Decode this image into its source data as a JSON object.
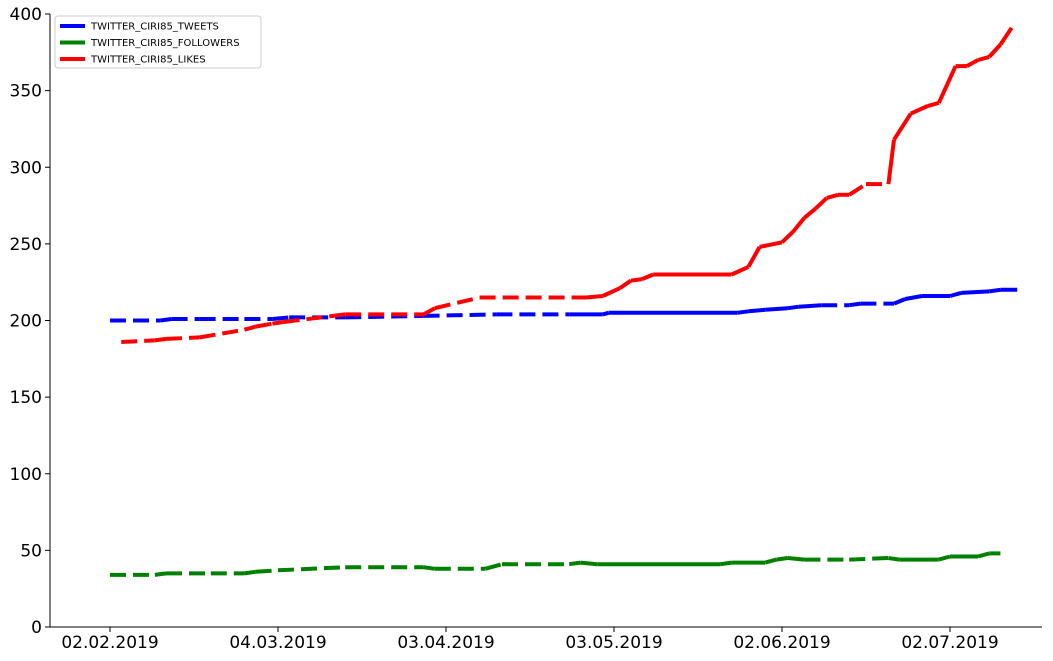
{
  "chart_data": {
    "type": "line",
    "title": "",
    "xlabel": "",
    "ylabel": "",
    "x_tick_labels": [
      "02.02.2019",
      "04.03.2019",
      "03.04.2019",
      "03.05.2019",
      "02.06.2019",
      "02.07.2019"
    ],
    "x_tick_dates": [
      "2019-02-02",
      "2019-03-04",
      "2019-04-03",
      "2019-05-03",
      "2019-06-02",
      "2019-07-02"
    ],
    "xlim": [
      "2019-02-02",
      "2019-07-27"
    ],
    "ylim": [
      0,
      400
    ],
    "y_ticks": [
      0,
      50,
      100,
      150,
      200,
      250,
      300,
      350,
      400
    ],
    "grid": false,
    "legend_position": "upper-left",
    "series": [
      {
        "name": "TWITTER_CIRI85_TWEETS",
        "color": "#0000ff",
        "points": [
          [
            "2019-02-02",
            200,
            "dashed"
          ],
          [
            "2019-02-11",
            200,
            "dashed"
          ],
          [
            "2019-02-13",
            201,
            "dashed"
          ],
          [
            "2019-02-18",
            201,
            "dashed"
          ],
          [
            "2019-02-26",
            201,
            "dashed"
          ],
          [
            "2019-03-03",
            201,
            "dashed"
          ],
          [
            "2019-03-06",
            202,
            "dashed"
          ],
          [
            "2019-03-16",
            202,
            "dashed"
          ],
          [
            "2019-03-30",
            203,
            "dashed"
          ],
          [
            "2019-04-12",
            204,
            "dashed"
          ],
          [
            "2019-04-25",
            204,
            "dashed"
          ],
          [
            "2019-05-01",
            204,
            "solid"
          ],
          [
            "2019-05-02",
            205,
            "solid"
          ],
          [
            "2019-05-25",
            205,
            "solid"
          ],
          [
            "2019-05-27",
            206,
            "solid"
          ],
          [
            "2019-05-30",
            207,
            "solid"
          ],
          [
            "2019-06-03",
            208,
            "solid"
          ],
          [
            "2019-06-05",
            209,
            "solid"
          ],
          [
            "2019-06-09",
            210,
            "solid"
          ],
          [
            "2019-06-14",
            210,
            "dashed"
          ],
          [
            "2019-06-16",
            211,
            "dashed"
          ],
          [
            "2019-06-22",
            211,
            "dashed"
          ],
          [
            "2019-06-24",
            214,
            "solid"
          ],
          [
            "2019-06-27",
            216,
            "solid"
          ],
          [
            "2019-07-02",
            216,
            "solid"
          ],
          [
            "2019-07-04",
            218,
            "solid"
          ],
          [
            "2019-07-09",
            219,
            "solid"
          ],
          [
            "2019-07-11",
            220,
            "solid"
          ],
          [
            "2019-07-14",
            220,
            "solid"
          ]
        ]
      },
      {
        "name": "TWITTER_CIRI85_FOLLOWERS",
        "color": "#008000",
        "points": [
          [
            "2019-02-02",
            34,
            "dashed"
          ],
          [
            "2019-02-10",
            34,
            "dashed"
          ],
          [
            "2019-02-12",
            35,
            "dashed"
          ],
          [
            "2019-02-20",
            35,
            "dashed"
          ],
          [
            "2019-02-26",
            35,
            "dashed"
          ],
          [
            "2019-02-28",
            36,
            "dashed"
          ],
          [
            "2019-03-04",
            37,
            "dashed"
          ],
          [
            "2019-03-16",
            39,
            "dashed"
          ],
          [
            "2019-03-30",
            39,
            "dashed"
          ],
          [
            "2019-04-01",
            38,
            "dashed"
          ],
          [
            "2019-04-10",
            38,
            "dashed"
          ],
          [
            "2019-04-13",
            41,
            "dashed"
          ],
          [
            "2019-04-25",
            41,
            "dashed"
          ],
          [
            "2019-04-27",
            42,
            "solid"
          ],
          [
            "2019-04-30",
            41,
            "solid"
          ],
          [
            "2019-05-22",
            41,
            "solid"
          ],
          [
            "2019-05-24",
            42,
            "solid"
          ],
          [
            "2019-05-30",
            42,
            "solid"
          ],
          [
            "2019-06-01",
            44,
            "solid"
          ],
          [
            "2019-06-03",
            45,
            "solid"
          ],
          [
            "2019-06-06",
            44,
            "solid"
          ],
          [
            "2019-06-14",
            44,
            "dashed"
          ],
          [
            "2019-06-21",
            45,
            "dashed"
          ],
          [
            "2019-06-23",
            44,
            "solid"
          ],
          [
            "2019-06-30",
            44,
            "solid"
          ],
          [
            "2019-07-02",
            46,
            "solid"
          ],
          [
            "2019-07-07",
            46,
            "solid"
          ],
          [
            "2019-07-09",
            48,
            "solid"
          ],
          [
            "2019-07-11",
            48,
            "solid"
          ]
        ]
      },
      {
        "name": "TWITTER_CIRI85_LIKES",
        "color": "#ff0000",
        "points": [
          [
            "2019-02-04",
            186,
            "dashed"
          ],
          [
            "2019-02-10",
            187,
            "dashed"
          ],
          [
            "2019-02-12",
            188,
            "dashed"
          ],
          [
            "2019-02-18",
            189,
            "dashed"
          ],
          [
            "2019-02-26",
            194,
            "dashed"
          ],
          [
            "2019-02-28",
            196,
            "dashed"
          ],
          [
            "2019-03-03",
            198,
            "dashed"
          ],
          [
            "2019-03-05",
            199,
            "dashed"
          ],
          [
            "2019-03-16",
            204,
            "dashed"
          ],
          [
            "2019-03-30",
            204,
            "dashed"
          ],
          [
            "2019-04-01",
            208,
            "dashed"
          ],
          [
            "2019-04-09",
            215,
            "dashed"
          ],
          [
            "2019-04-28",
            215,
            "dashed"
          ],
          [
            "2019-05-01",
            216,
            "solid"
          ],
          [
            "2019-05-04",
            221,
            "solid"
          ],
          [
            "2019-05-06",
            226,
            "solid"
          ],
          [
            "2019-05-08",
            227,
            "solid"
          ],
          [
            "2019-05-10",
            230,
            "solid"
          ],
          [
            "2019-05-24",
            230,
            "solid"
          ],
          [
            "2019-05-27",
            235,
            "solid"
          ],
          [
            "2019-05-29",
            248,
            "solid"
          ],
          [
            "2019-06-02",
            251,
            "solid"
          ],
          [
            "2019-06-04",
            258,
            "solid"
          ],
          [
            "2019-06-06",
            267,
            "solid"
          ],
          [
            "2019-06-08",
            273,
            "solid"
          ],
          [
            "2019-06-10",
            280,
            "solid"
          ],
          [
            "2019-06-12",
            282,
            "solid"
          ],
          [
            "2019-06-14",
            282,
            "dashed"
          ],
          [
            "2019-06-17",
            289,
            "dashed"
          ],
          [
            "2019-06-21",
            289,
            "dashed"
          ],
          [
            "2019-06-22",
            318,
            "solid"
          ],
          [
            "2019-06-25",
            335,
            "solid"
          ],
          [
            "2019-06-28",
            340,
            "solid"
          ],
          [
            "2019-06-30",
            342,
            "solid"
          ],
          [
            "2019-07-03",
            366,
            "solid"
          ],
          [
            "2019-07-05",
            366,
            "solid"
          ],
          [
            "2019-07-07",
            370,
            "solid"
          ],
          [
            "2019-07-09",
            372,
            "solid"
          ],
          [
            "2019-07-11",
            380,
            "solid"
          ],
          [
            "2019-07-13",
            391,
            "solid"
          ]
        ]
      }
    ]
  }
}
